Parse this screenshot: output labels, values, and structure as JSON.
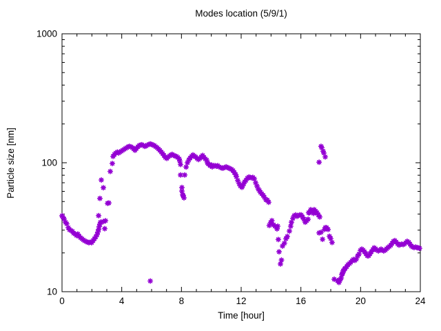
{
  "chart_data": {
    "type": "scatter",
    "title": "Modes location (5/9/1)",
    "xlabel": "Time [hour]",
    "ylabel": "Particle size [nm]",
    "xlim": [
      0,
      24
    ],
    "ylim": [
      10,
      1000
    ],
    "yscale": "log",
    "xticks": [
      0,
      4,
      8,
      12,
      16,
      20,
      24
    ],
    "x_minor_step": 1,
    "yticks": [
      10,
      100,
      1000
    ],
    "grid": "off",
    "legend": "none",
    "marker": "asterisk",
    "marker_color": "#9400d3",
    "axis_color": "#000000",
    "points": [
      [
        0.0,
        38.8
      ],
      [
        0.05,
        38
      ],
      [
        0.14,
        36.6
      ],
      [
        0.23,
        34.6
      ],
      [
        0.32,
        33.6
      ],
      [
        0.42,
        31.4
      ],
      [
        0.51,
        30.2
      ],
      [
        0.6,
        29.8
      ],
      [
        0.69,
        29.4
      ],
      [
        0.78,
        28.4
      ],
      [
        0.88,
        28
      ],
      [
        0.97,
        27.3
      ],
      [
        1.06,
        28
      ],
      [
        1.15,
        26.9
      ],
      [
        1.25,
        26.2
      ],
      [
        1.34,
        25.7
      ],
      [
        1.43,
        25.2
      ],
      [
        1.52,
        24.8
      ],
      [
        1.62,
        24.5
      ],
      [
        1.71,
        24.2
      ],
      [
        1.8,
        24
      ],
      [
        1.89,
        24.2
      ],
      [
        1.98,
        24
      ],
      [
        2.08,
        24.9
      ],
      [
        2.17,
        25.7
      ],
      [
        2.26,
        26.6
      ],
      [
        2.35,
        27.8
      ],
      [
        2.4,
        29
      ],
      [
        2.45,
        30.4
      ],
      [
        2.49,
        32
      ],
      [
        2.54,
        33.4
      ],
      [
        2.58,
        34.6
      ],
      [
        2.45,
        38.9
      ],
      [
        2.54,
        52.9
      ],
      [
        2.63,
        73.5
      ],
      [
        2.77,
        64
      ],
      [
        2.77,
        35
      ],
      [
        2.86,
        30.8
      ],
      [
        2.91,
        35.5
      ],
      [
        3.05,
        48.5
      ],
      [
        3.14,
        48.8
      ],
      [
        3.23,
        85.6
      ],
      [
        3.37,
        98.7
      ],
      [
        3.42,
        112
      ],
      [
        3.51,
        116
      ],
      [
        3.6,
        119
      ],
      [
        3.7,
        121
      ],
      [
        3.79,
        119
      ],
      [
        3.88,
        121
      ],
      [
        3.97,
        123
      ],
      [
        4.06,
        125
      ],
      [
        4.15,
        127
      ],
      [
        4.25,
        129
      ],
      [
        4.34,
        131
      ],
      [
        4.43,
        133
      ],
      [
        4.52,
        134
      ],
      [
        4.62,
        133
      ],
      [
        4.71,
        131
      ],
      [
        4.8,
        128
      ],
      [
        4.89,
        125
      ],
      [
        4.98,
        129
      ],
      [
        5.08,
        133
      ],
      [
        5.17,
        136
      ],
      [
        5.26,
        137
      ],
      [
        5.35,
        138
      ],
      [
        5.45,
        136
      ],
      [
        5.54,
        134
      ],
      [
        5.63,
        135
      ],
      [
        5.72,
        137
      ],
      [
        5.82,
        139
      ],
      [
        5.91,
        140
      ],
      [
        6.0,
        139
      ],
      [
        6.09,
        137
      ],
      [
        6.18,
        136
      ],
      [
        6.28,
        133
      ],
      [
        6.37,
        131
      ],
      [
        6.46,
        128
      ],
      [
        6.55,
        125
      ],
      [
        6.65,
        121
      ],
      [
        6.74,
        118
      ],
      [
        6.83,
        114
      ],
      [
        6.92,
        110
      ],
      [
        7.02,
        108
      ],
      [
        7.11,
        111
      ],
      [
        7.2,
        113
      ],
      [
        7.29,
        115
      ],
      [
        7.38,
        116
      ],
      [
        7.48,
        114
      ],
      [
        7.57,
        113
      ],
      [
        7.66,
        112
      ],
      [
        7.75,
        110
      ],
      [
        7.85,
        107
      ],
      [
        5.91,
        12.1
      ],
      [
        7.89,
        103
      ],
      [
        7.94,
        97
      ],
      [
        7.94,
        80.4
      ],
      [
        8.03,
        64.3
      ],
      [
        8.03,
        60.3
      ],
      [
        8.08,
        56.5
      ],
      [
        8.12,
        55.5
      ],
      [
        8.17,
        53.4
      ],
      [
        8.22,
        80.4
      ],
      [
        8.31,
        92.7
      ],
      [
        8.4,
        100
      ],
      [
        8.49,
        105
      ],
      [
        8.58,
        109
      ],
      [
        8.68,
        112
      ],
      [
        8.77,
        115
      ],
      [
        8.86,
        113
      ],
      [
        8.95,
        111
      ],
      [
        9.05,
        108
      ],
      [
        9.14,
        106
      ],
      [
        9.23,
        108
      ],
      [
        9.32,
        111
      ],
      [
        9.42,
        114
      ],
      [
        9.51,
        110
      ],
      [
        9.6,
        107
      ],
      [
        9.69,
        105
      ],
      [
        9.74,
        100
      ],
      [
        9.79,
        98
      ],
      [
        9.88,
        97
      ],
      [
        9.92,
        95
      ],
      [
        10.02,
        96
      ],
      [
        10.06,
        93
      ],
      [
        10.15,
        95
      ],
      [
        10.25,
        95
      ],
      [
        10.34,
        94
      ],
      [
        10.43,
        95
      ],
      [
        10.52,
        93
      ],
      [
        10.62,
        92
      ],
      [
        10.71,
        91
      ],
      [
        10.8,
        91
      ],
      [
        10.89,
        92
      ],
      [
        10.99,
        93
      ],
      [
        11.08,
        92
      ],
      [
        11.17,
        91
      ],
      [
        11.26,
        90
      ],
      [
        11.35,
        89
      ],
      [
        11.45,
        87
      ],
      [
        11.54,
        84
      ],
      [
        11.63,
        81
      ],
      [
        11.68,
        78
      ],
      [
        11.77,
        73
      ],
      [
        11.86,
        69
      ],
      [
        11.95,
        66
      ],
      [
        12.05,
        64.5
      ],
      [
        12.09,
        66
      ],
      [
        12.18,
        69
      ],
      [
        12.23,
        71
      ],
      [
        12.32,
        73
      ],
      [
        12.42,
        76
      ],
      [
        12.51,
        77.5
      ],
      [
        12.6,
        77
      ],
      [
        12.69,
        76.5
      ],
      [
        12.78,
        77
      ],
      [
        12.88,
        75
      ],
      [
        12.97,
        70
      ],
      [
        13.06,
        66
      ],
      [
        13.15,
        62.5
      ],
      [
        13.22,
        61
      ],
      [
        13.29,
        59
      ],
      [
        13.38,
        57.5
      ],
      [
        13.47,
        55.9
      ],
      [
        13.55,
        54
      ],
      [
        13.66,
        51.5
      ],
      [
        13.75,
        51.4
      ],
      [
        13.84,
        49.4
      ],
      [
        13.88,
        32.6
      ],
      [
        13.97,
        34.3
      ],
      [
        14.06,
        35.6
      ],
      [
        14.17,
        33
      ],
      [
        14.26,
        32.2
      ],
      [
        14.4,
        30.7
      ],
      [
        14.45,
        32.2
      ],
      [
        14.49,
        25.4
      ],
      [
        14.54,
        20.4
      ],
      [
        14.63,
        16.4
      ],
      [
        14.7,
        17.6
      ],
      [
        14.77,
        22.6
      ],
      [
        14.9,
        23.8
      ],
      [
        15.0,
        25.7
      ],
      [
        15.09,
        26.8
      ],
      [
        15.23,
        29.5
      ],
      [
        15.32,
        32.2
      ],
      [
        15.37,
        34.6
      ],
      [
        15.46,
        37
      ],
      [
        15.55,
        38.9
      ],
      [
        15.65,
        39.4
      ],
      [
        15.74,
        38.4
      ],
      [
        15.83,
        38.9
      ],
      [
        15.92,
        39.4
      ],
      [
        16.02,
        39.4
      ],
      [
        16.11,
        37.9
      ],
      [
        16.2,
        36.5
      ],
      [
        16.29,
        34.6
      ],
      [
        16.38,
        35.5
      ],
      [
        16.48,
        36.5
      ],
      [
        16.52,
        41
      ],
      [
        16.57,
        41
      ],
      [
        16.66,
        43.3
      ],
      [
        16.75,
        42.2
      ],
      [
        16.85,
        40.5
      ],
      [
        16.89,
        43.3
      ],
      [
        16.98,
        42.2
      ],
      [
        17.08,
        41
      ],
      [
        17.17,
        39.4
      ],
      [
        17.26,
        38
      ],
      [
        17.22,
        101
      ],
      [
        17.35,
        134
      ],
      [
        17.4,
        131
      ],
      [
        17.49,
        123
      ],
      [
        17.54,
        119
      ],
      [
        17.63,
        111
      ],
      [
        17.22,
        28.6
      ],
      [
        17.35,
        28.9
      ],
      [
        17.45,
        25.5
      ],
      [
        17.58,
        30.4
      ],
      [
        17.63,
        31.4
      ],
      [
        17.72,
        31.4
      ],
      [
        17.82,
        30.4
      ],
      [
        17.91,
        26.9
      ],
      [
        18.0,
        25.8
      ],
      [
        18.09,
        24.1
      ],
      [
        18.23,
        12.5
      ],
      [
        18.45,
        12.2
      ],
      [
        18.51,
        12.1
      ],
      [
        18.55,
        11.8
      ],
      [
        18.6,
        12.2
      ],
      [
        18.65,
        12.5
      ],
      [
        18.7,
        12.8
      ],
      [
        18.74,
        13.6
      ],
      [
        18.79,
        13.8
      ],
      [
        18.83,
        14.5
      ],
      [
        18.88,
        14.6
      ],
      [
        18.93,
        15
      ],
      [
        18.97,
        15.2
      ],
      [
        19.06,
        15.6
      ],
      [
        19.15,
        16.2
      ],
      [
        19.25,
        16.5
      ],
      [
        19.34,
        16.9
      ],
      [
        19.43,
        17.4
      ],
      [
        19.52,
        17.8
      ],
      [
        19.62,
        17.5
      ],
      [
        19.71,
        17.9
      ],
      [
        19.8,
        18.9
      ],
      [
        19.89,
        19.6
      ],
      [
        19.99,
        20.9
      ],
      [
        20.08,
        21.4
      ],
      [
        20.17,
        21
      ],
      [
        20.26,
        20.4
      ],
      [
        20.36,
        19.7
      ],
      [
        20.45,
        19
      ],
      [
        20.54,
        19
      ],
      [
        20.63,
        19.7
      ],
      [
        20.72,
        20.4
      ],
      [
        20.82,
        21.2
      ],
      [
        20.91,
        21.9
      ],
      [
        21.0,
        21.5
      ],
      [
        21.09,
        21
      ],
      [
        21.19,
        20.7
      ],
      [
        21.28,
        21
      ],
      [
        21.37,
        21.4
      ],
      [
        21.46,
        21
      ],
      [
        21.55,
        20.7
      ],
      [
        21.65,
        21
      ],
      [
        21.74,
        21.5
      ],
      [
        21.83,
        22
      ],
      [
        21.92,
        22.4
      ],
      [
        22.02,
        22.9
      ],
      [
        22.11,
        23.7
      ],
      [
        22.2,
        24.6
      ],
      [
        22.29,
        24.9
      ],
      [
        22.38,
        24.3
      ],
      [
        22.48,
        23.5
      ],
      [
        22.57,
        23
      ],
      [
        22.66,
        23.2
      ],
      [
        22.75,
        23.4
      ],
      [
        22.85,
        23.2
      ],
      [
        22.94,
        23.5
      ],
      [
        23.03,
        24
      ],
      [
        23.12,
        24.6
      ],
      [
        23.22,
        24.2
      ],
      [
        23.31,
        23.4
      ],
      [
        23.4,
        22.6
      ],
      [
        23.49,
        22.2
      ],
      [
        23.58,
        22
      ],
      [
        23.68,
        22.2
      ],
      [
        23.77,
        22
      ],
      [
        23.86,
        21.9
      ],
      [
        23.95,
        21.7
      ]
    ]
  }
}
